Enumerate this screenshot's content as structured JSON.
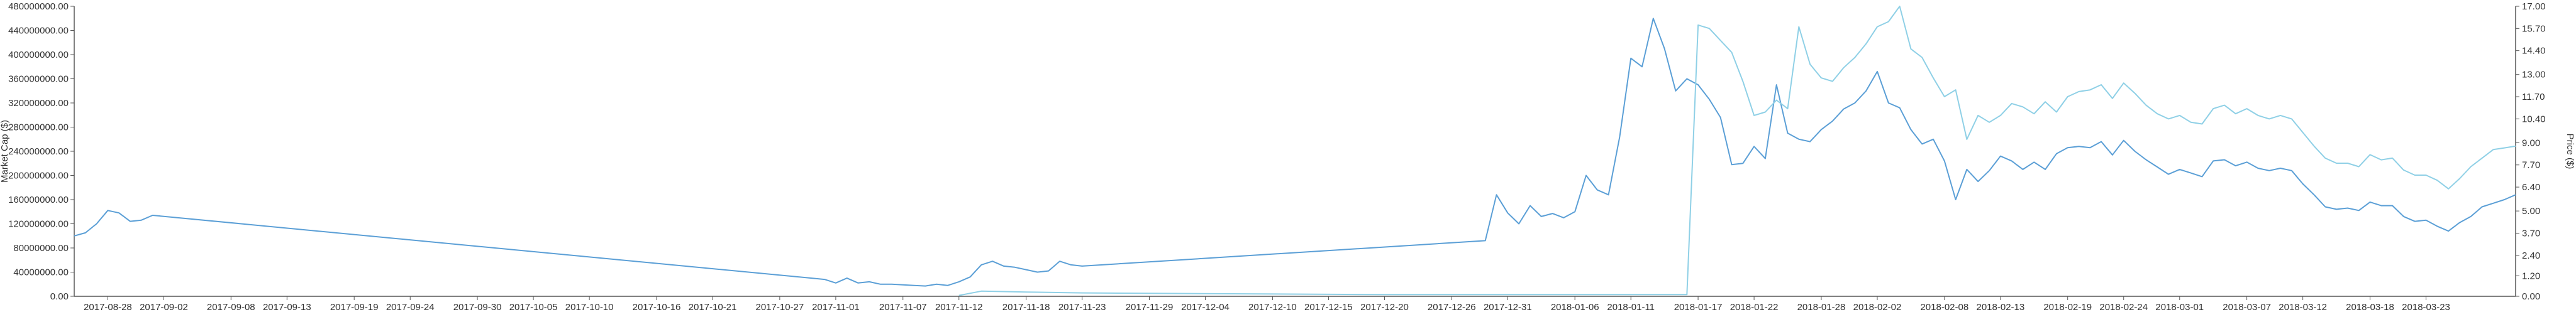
{
  "colors": {
    "market_cap_line": "#5b9fd6",
    "price_line": "#8fd0e6",
    "axis": "#555555",
    "text": "#333333"
  },
  "chart_data": {
    "type": "line",
    "title": "",
    "xlabel": "",
    "ylabel_left": "Market Cap ($)",
    "ylabel_right": "Price ($)",
    "ylim_left": [
      0,
      480000000
    ],
    "ylim_right": [
      0,
      17
    ],
    "grid": false,
    "left_ticks": [
      "0.00",
      "40000000.00",
      "80000000.00",
      "120000000.00",
      "160000000.00",
      "200000000.00",
      "240000000.00",
      "280000000.00",
      "320000000.00",
      "360000000.00",
      "400000000.00",
      "440000000.00",
      "480000000.00"
    ],
    "left_tick_values": [
      0,
      40000000,
      80000000,
      120000000,
      160000000,
      200000000,
      240000000,
      280000000,
      320000000,
      360000000,
      400000000,
      440000000,
      480000000
    ],
    "right_ticks": [
      "0.00",
      "1.20",
      "2.40",
      "3.70",
      "5.00",
      "6.40",
      "7.70",
      "9.00",
      "10.40",
      "11.70",
      "13.00",
      "14.40",
      "15.70",
      "17.00"
    ],
    "right_tick_values": [
      0,
      1.2,
      2.4,
      3.7,
      5.0,
      6.4,
      7.7,
      9.0,
      10.4,
      11.7,
      13.0,
      14.4,
      15.7,
      17.0
    ],
    "x_ticks": [
      "2017-08-28",
      "2017-09-02",
      "2017-09-08",
      "2017-09-13",
      "2017-09-19",
      "2017-09-24",
      "2017-09-30",
      "2017-10-05",
      "2017-10-10",
      "2017-10-16",
      "2017-10-21",
      "2017-10-27",
      "2017-11-01",
      "2017-11-07",
      "2017-11-12",
      "2017-11-18",
      "2017-11-23",
      "2017-11-29",
      "2017-12-04",
      "2017-12-10",
      "2017-12-15",
      "2017-12-20",
      "2017-12-26",
      "2017-12-31",
      "2018-01-06",
      "2018-01-11",
      "2018-01-17",
      "2018-01-22",
      "2018-01-28",
      "2018-02-02",
      "2018-02-08",
      "2018-02-13",
      "2018-02-19",
      "2018-02-24",
      "2018-03-01",
      "2018-03-07",
      "2018-03-12",
      "2018-03-18",
      "2018-03-23"
    ],
    "series": [
      {
        "axis": "left",
        "points": [
          [
            "2017-08-25",
            100000000
          ],
          [
            "2017-08-26",
            105000000
          ],
          [
            "2017-08-27",
            120000000
          ],
          [
            "2017-08-28",
            142000000
          ],
          [
            "2017-08-29",
            138000000
          ],
          [
            "2017-08-30",
            124000000
          ],
          [
            "2017-08-31",
            126000000
          ],
          [
            "2017-09-01",
            134000000
          ],
          [
            "2017-10-31",
            28000000
          ],
          [
            "2017-11-01",
            22000000
          ],
          [
            "2017-11-02",
            30000000
          ],
          [
            "2017-11-03",
            22000000
          ],
          [
            "2017-11-04",
            24000000
          ],
          [
            "2017-11-05",
            20000000
          ],
          [
            "2017-11-06",
            20000000
          ],
          [
            "2017-11-07",
            19000000
          ],
          [
            "2017-11-08",
            18000000
          ],
          [
            "2017-11-09",
            17000000
          ],
          [
            "2017-11-10",
            20000000
          ],
          [
            "2017-11-11",
            18000000
          ],
          [
            "2017-11-12",
            24000000
          ],
          [
            "2017-11-13",
            32000000
          ],
          [
            "2017-11-14",
            52000000
          ],
          [
            "2017-11-15",
            58000000
          ],
          [
            "2017-11-16",
            50000000
          ],
          [
            "2017-11-17",
            48000000
          ],
          [
            "2017-11-18",
            44000000
          ],
          [
            "2017-11-19",
            40000000
          ],
          [
            "2017-11-20",
            42000000
          ],
          [
            "2017-11-21",
            58000000
          ],
          [
            "2017-11-22",
            52000000
          ],
          [
            "2017-11-23",
            50000000
          ],
          [
            "2017-12-29",
            92000000
          ],
          [
            "2017-12-30",
            168000000
          ],
          [
            "2017-12-31",
            138000000
          ],
          [
            "2018-01-01",
            120000000
          ],
          [
            "2018-01-02",
            150000000
          ],
          [
            "2018-01-03",
            132000000
          ],
          [
            "2018-01-04",
            137000000
          ],
          [
            "2018-01-05",
            130000000
          ],
          [
            "2018-01-06",
            140000000
          ],
          [
            "2018-01-07",
            200000000
          ],
          [
            "2018-01-08",
            176000000
          ],
          [
            "2018-01-09",
            168000000
          ],
          [
            "2018-01-10",
            264000000
          ],
          [
            "2018-01-11",
            394000000
          ],
          [
            "2018-01-12",
            380000000
          ],
          [
            "2018-01-13",
            460000000
          ],
          [
            "2018-01-14",
            410000000
          ],
          [
            "2018-01-15",
            340000000
          ],
          [
            "2018-01-16",
            360000000
          ],
          [
            "2018-01-17",
            350000000
          ],
          [
            "2018-01-18",
            326000000
          ],
          [
            "2018-01-19",
            296000000
          ],
          [
            "2018-01-20",
            218000000
          ],
          [
            "2018-01-21",
            220000000
          ],
          [
            "2018-01-22",
            248000000
          ],
          [
            "2018-01-23",
            228000000
          ],
          [
            "2018-01-24",
            350000000
          ],
          [
            "2018-01-25",
            270000000
          ],
          [
            "2018-01-26",
            260000000
          ],
          [
            "2018-01-27",
            256000000
          ],
          [
            "2018-01-28",
            276000000
          ],
          [
            "2018-01-29",
            290000000
          ],
          [
            "2018-01-30",
            310000000
          ],
          [
            "2018-01-31",
            320000000
          ],
          [
            "2018-02-01",
            340000000
          ],
          [
            "2018-02-02",
            372000000
          ],
          [
            "2018-02-03",
            320000000
          ],
          [
            "2018-02-04",
            312000000
          ],
          [
            "2018-02-05",
            276000000
          ],
          [
            "2018-02-06",
            252000000
          ],
          [
            "2018-02-07",
            260000000
          ],
          [
            "2018-02-08",
            224000000
          ],
          [
            "2018-02-09",
            160000000
          ],
          [
            "2018-02-10",
            210000000
          ],
          [
            "2018-02-11",
            190000000
          ],
          [
            "2018-02-12",
            208000000
          ],
          [
            "2018-02-13",
            232000000
          ],
          [
            "2018-02-14",
            224000000
          ],
          [
            "2018-02-15",
            210000000
          ],
          [
            "2018-02-16",
            222000000
          ],
          [
            "2018-02-17",
            210000000
          ],
          [
            "2018-02-18",
            236000000
          ],
          [
            "2018-02-19",
            246000000
          ],
          [
            "2018-02-20",
            248000000
          ],
          [
            "2018-02-21",
            246000000
          ],
          [
            "2018-02-22",
            256000000
          ],
          [
            "2018-02-23",
            234000000
          ],
          [
            "2018-02-24",
            258000000
          ],
          [
            "2018-02-25",
            240000000
          ],
          [
            "2018-02-26",
            226000000
          ],
          [
            "2018-02-27",
            214000000
          ],
          [
            "2018-02-28",
            202000000
          ],
          [
            "2018-03-01",
            210000000
          ],
          [
            "2018-03-02",
            204000000
          ],
          [
            "2018-03-03",
            198000000
          ],
          [
            "2018-03-04",
            224000000
          ],
          [
            "2018-03-05",
            226000000
          ],
          [
            "2018-03-06",
            216000000
          ],
          [
            "2018-03-07",
            222000000
          ],
          [
            "2018-03-08",
            212000000
          ],
          [
            "2018-03-09",
            208000000
          ],
          [
            "2018-03-10",
            212000000
          ],
          [
            "2018-03-11",
            208000000
          ],
          [
            "2018-03-12",
            186000000
          ],
          [
            "2018-03-13",
            168000000
          ],
          [
            "2018-03-14",
            148000000
          ],
          [
            "2018-03-15",
            144000000
          ],
          [
            "2018-03-16",
            146000000
          ],
          [
            "2018-03-17",
            142000000
          ],
          [
            "2018-03-18",
            156000000
          ],
          [
            "2018-03-19",
            150000000
          ],
          [
            "2018-03-20",
            150000000
          ],
          [
            "2018-03-21",
            132000000
          ],
          [
            "2018-03-22",
            124000000
          ],
          [
            "2018-03-23",
            126000000
          ],
          [
            "2018-03-24",
            116000000
          ],
          [
            "2018-03-25",
            108000000
          ],
          [
            "2018-03-26",
            122000000
          ],
          [
            "2018-03-27",
            132000000
          ],
          [
            "2018-03-28",
            148000000
          ],
          [
            "2018-03-29",
            154000000
          ],
          [
            "2018-03-30",
            160000000
          ],
          [
            "2018-03-31",
            168000000
          ]
        ]
      },
      {
        "axis": "right",
        "points": [
          [
            "2017-11-12",
            0.05
          ],
          [
            "2017-11-14",
            0.3
          ],
          [
            "2017-11-18",
            0.25
          ],
          [
            "2017-11-23",
            0.2
          ],
          [
            "2017-12-05",
            0.15
          ],
          [
            "2017-12-20",
            0.1
          ],
          [
            "2018-01-05",
            0.1
          ],
          [
            "2018-01-16",
            0.1
          ],
          [
            "2018-01-17",
            15.9
          ],
          [
            "2018-01-18",
            15.7
          ],
          [
            "2018-01-19",
            15.0
          ],
          [
            "2018-01-20",
            14.3
          ],
          [
            "2018-01-21",
            12.6
          ],
          [
            "2018-01-22",
            10.6
          ],
          [
            "2018-01-23",
            10.8
          ],
          [
            "2018-01-24",
            11.5
          ],
          [
            "2018-01-25",
            11.0
          ],
          [
            "2018-01-26",
            15.8
          ],
          [
            "2018-01-27",
            13.6
          ],
          [
            "2018-01-28",
            12.8
          ],
          [
            "2018-01-29",
            12.6
          ],
          [
            "2018-01-30",
            13.4
          ],
          [
            "2018-01-31",
            14.0
          ],
          [
            "2018-02-01",
            14.8
          ],
          [
            "2018-02-02",
            15.8
          ],
          [
            "2018-02-03",
            16.1
          ],
          [
            "2018-02-04",
            17.0
          ],
          [
            "2018-02-05",
            14.5
          ],
          [
            "2018-02-06",
            14.0
          ],
          [
            "2018-02-07",
            12.8
          ],
          [
            "2018-02-08",
            11.7
          ],
          [
            "2018-02-09",
            12.1
          ],
          [
            "2018-02-10",
            9.2
          ],
          [
            "2018-02-11",
            10.6
          ],
          [
            "2018-02-12",
            10.2
          ],
          [
            "2018-02-13",
            10.6
          ],
          [
            "2018-02-14",
            11.3
          ],
          [
            "2018-02-15",
            11.1
          ],
          [
            "2018-02-16",
            10.7
          ],
          [
            "2018-02-17",
            11.4
          ],
          [
            "2018-02-18",
            10.8
          ],
          [
            "2018-02-19",
            11.7
          ],
          [
            "2018-02-20",
            12.0
          ],
          [
            "2018-02-21",
            12.1
          ],
          [
            "2018-02-22",
            12.4
          ],
          [
            "2018-02-23",
            11.6
          ],
          [
            "2018-02-24",
            12.5
          ],
          [
            "2018-02-25",
            11.9
          ],
          [
            "2018-02-26",
            11.2
          ],
          [
            "2018-02-27",
            10.7
          ],
          [
            "2018-02-28",
            10.4
          ],
          [
            "2018-03-01",
            10.6
          ],
          [
            "2018-03-02",
            10.2
          ],
          [
            "2018-03-03",
            10.1
          ],
          [
            "2018-03-04",
            11.0
          ],
          [
            "2018-03-05",
            11.2
          ],
          [
            "2018-03-06",
            10.7
          ],
          [
            "2018-03-07",
            11.0
          ],
          [
            "2018-03-08",
            10.6
          ],
          [
            "2018-03-09",
            10.4
          ],
          [
            "2018-03-10",
            10.6
          ],
          [
            "2018-03-11",
            10.4
          ],
          [
            "2018-03-12",
            9.6
          ],
          [
            "2018-03-13",
            8.8
          ],
          [
            "2018-03-14",
            8.1
          ],
          [
            "2018-03-15",
            7.8
          ],
          [
            "2018-03-16",
            7.8
          ],
          [
            "2018-03-17",
            7.6
          ],
          [
            "2018-03-18",
            8.3
          ],
          [
            "2018-03-19",
            8.0
          ],
          [
            "2018-03-20",
            8.1
          ],
          [
            "2018-03-21",
            7.4
          ],
          [
            "2018-03-22",
            7.1
          ],
          [
            "2018-03-23",
            7.1
          ],
          [
            "2018-03-24",
            6.8
          ],
          [
            "2018-03-25",
            6.3
          ],
          [
            "2018-03-26",
            6.9
          ],
          [
            "2018-03-27",
            7.6
          ],
          [
            "2018-03-28",
            8.1
          ],
          [
            "2018-03-29",
            8.6
          ],
          [
            "2018-03-30",
            8.7
          ],
          [
            "2018-03-31",
            8.8
          ]
        ]
      }
    ]
  }
}
